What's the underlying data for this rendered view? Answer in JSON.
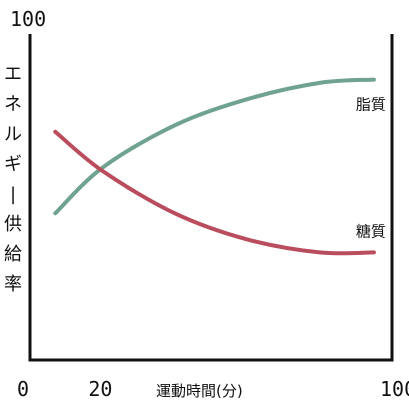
{
  "chart_data": {
    "type": "line",
    "xlabel": "運動時間(分)",
    "ylabel": "エネルギー供給率",
    "xlim": [
      0,
      100
    ],
    "ylim": [
      0,
      100
    ],
    "x_ticks": [
      "0",
      "20",
      "100"
    ],
    "y_ticks": [
      "100"
    ],
    "grid": false,
    "legend": "none",
    "series": [
      {
        "name": "脂質",
        "color": "#6fa38f",
        "x": [
          7,
          20,
          40,
          60,
          80,
          95
        ],
        "y": [
          45,
          59,
          72,
          80,
          85,
          86
        ]
      },
      {
        "name": "糖質",
        "color": "#b94d5e",
        "x": [
          7,
          20,
          40,
          60,
          80,
          95
        ],
        "y": [
          70,
          58,
          45,
          37,
          33,
          33
        ]
      }
    ]
  }
}
